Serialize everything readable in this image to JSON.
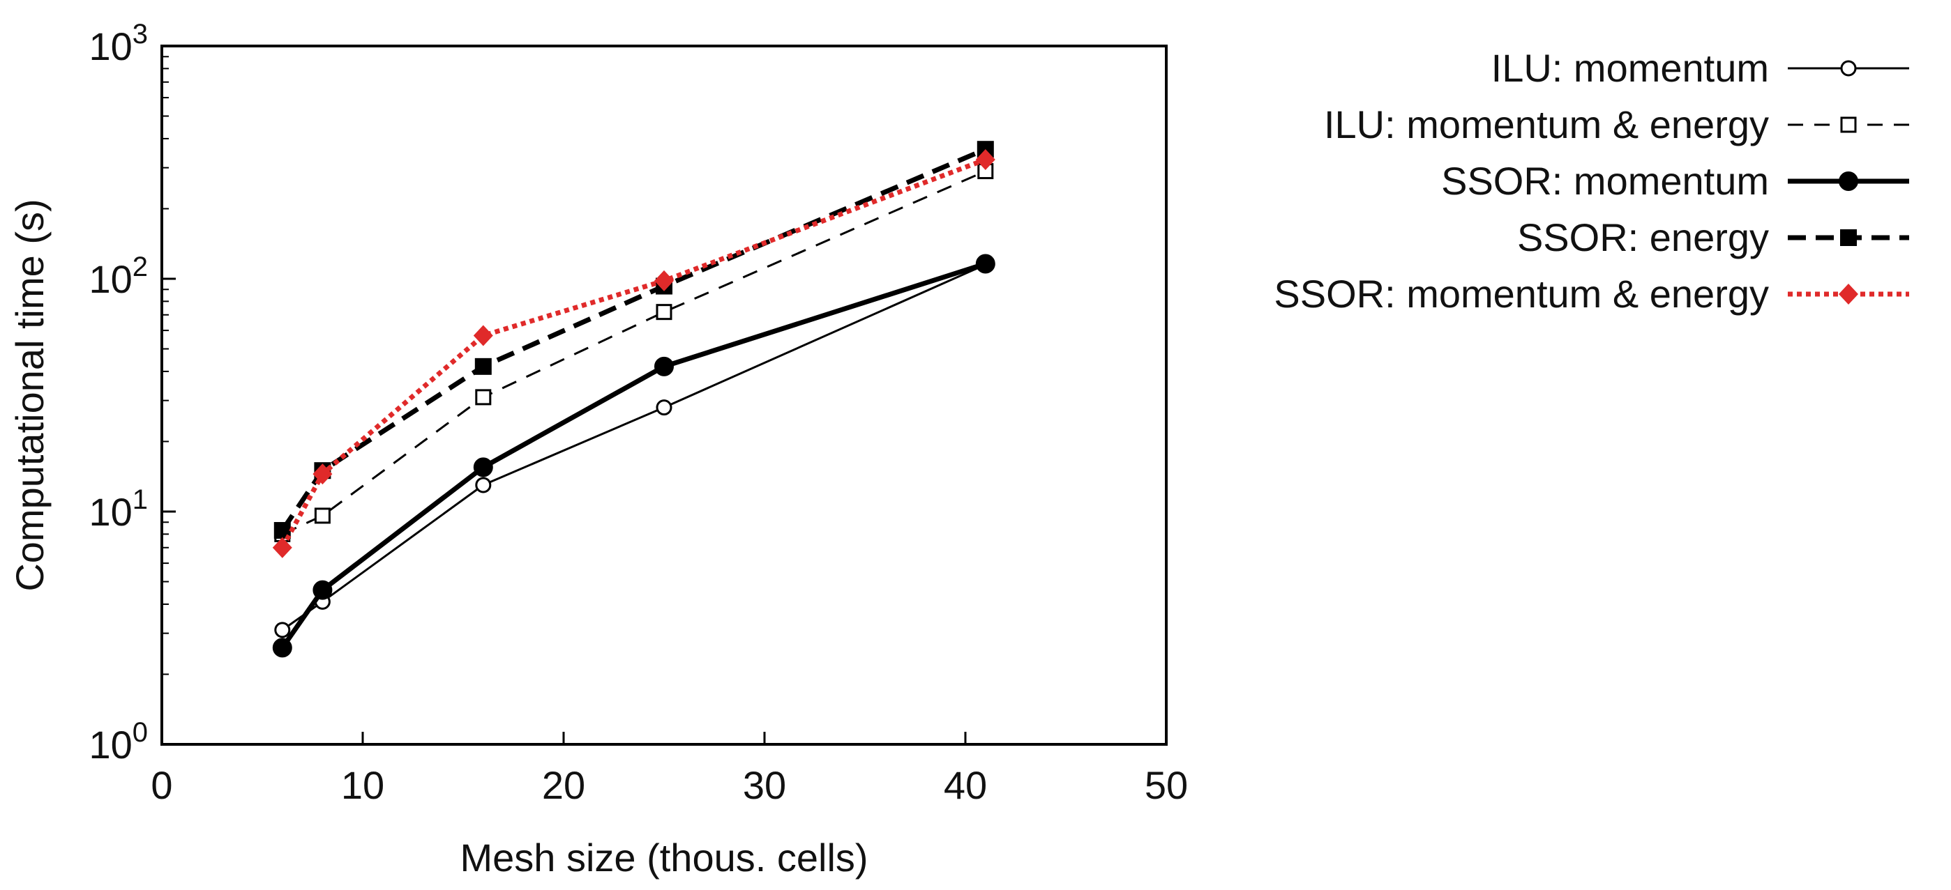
{
  "chart_data": {
    "type": "line",
    "title": "",
    "xlabel": "Mesh size (thous. cells)",
    "ylabel": "Computational time (s)",
    "xlim": [
      0,
      50
    ],
    "ylim": [
      1,
      1000
    ],
    "yscale": "log",
    "x_ticks": [
      0,
      10,
      20,
      30,
      40,
      50
    ],
    "x_tick_labels": [
      "0",
      "10",
      "20",
      "30",
      "40",
      "50"
    ],
    "y_ticks": [
      {
        "value": 1,
        "base": "10",
        "exp": "0"
      },
      {
        "value": 10,
        "base": "10",
        "exp": "1"
      },
      {
        "value": 100,
        "base": "10",
        "exp": "2"
      },
      {
        "value": 1000,
        "base": "10",
        "exp": "3"
      }
    ],
    "grid": false,
    "legend_position": "outside-right",
    "x": [
      6,
      8,
      16,
      25,
      41
    ],
    "series": [
      {
        "name": "ILU: momentum",
        "values": [
          3.1,
          4.1,
          13,
          28,
          115
        ],
        "color": "#000000",
        "line": "solid",
        "width": "thin",
        "marker": "circle-open"
      },
      {
        "name": "ILU: momentum & energy",
        "values": [
          8.0,
          9.6,
          31,
          72,
          290
        ],
        "color": "#000000",
        "line": "dashed",
        "width": "thin",
        "marker": "square-open"
      },
      {
        "name": "SSOR: momentum",
        "values": [
          2.6,
          4.6,
          15.5,
          42,
          116
        ],
        "color": "#000000",
        "line": "solid",
        "width": "thick",
        "marker": "circle-filled"
      },
      {
        "name": "SSOR: energy",
        "values": [
          8.3,
          15,
          42,
          93,
          360
        ],
        "color": "#000000",
        "line": "dashed",
        "width": "thick",
        "marker": "square-filled"
      },
      {
        "name": "SSOR: momentum & energy",
        "values": [
          7.0,
          14.5,
          57,
          98,
          325
        ],
        "color": "#e02a2a",
        "line": "dotted",
        "width": "thick",
        "marker": "diamond-filled"
      }
    ]
  }
}
